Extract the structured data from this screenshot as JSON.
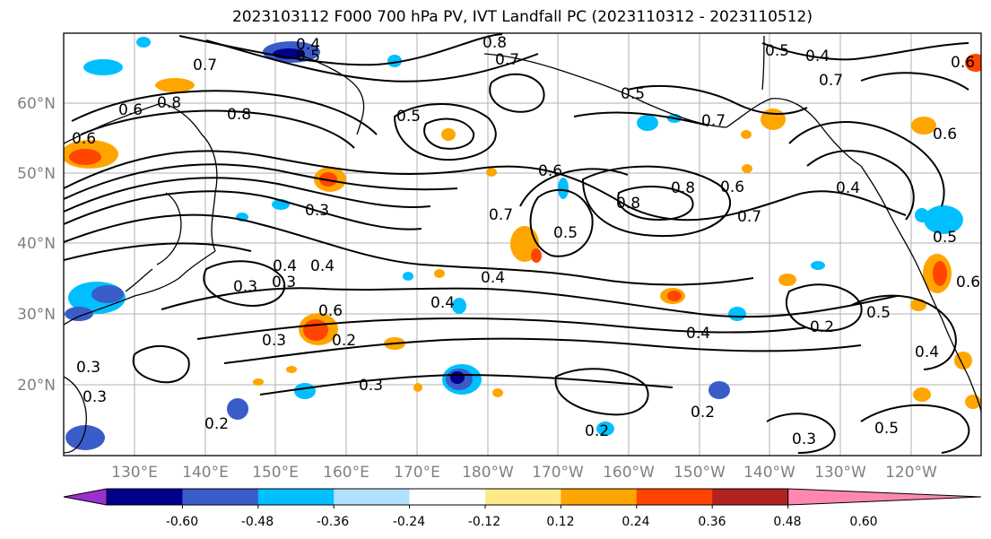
{
  "title": "2023103112 F000 700 hPa PV, IVT Landfall PC (2023110312 - 2023110512)",
  "lat_labels": [
    "60°N",
    "50°N",
    "40°N",
    "30°N",
    "20°N"
  ],
  "lon_labels": [
    "130°E",
    "140°E",
    "150°E",
    "160°E",
    "170°E",
    "180°W",
    "170°W",
    "160°W",
    "150°W",
    "140°W",
    "130°W",
    "120°W"
  ],
  "colorbar": {
    "colors": [
      "#9932cc",
      "#00008b",
      "#3a5cc8",
      "#00bfff",
      "#b0e2ff",
      "#ffffff",
      "#ffea8a",
      "#ffa500",
      "#ff4500",
      "#b22222",
      "#ff88b0"
    ],
    "tick_labels": [
      "-0.60",
      "-0.48",
      "-0.36",
      "-0.24",
      "-0.12",
      "0.12",
      "0.24",
      "0.36",
      "0.48",
      "0.60"
    ]
  },
  "contour_labels": [
    "0.4",
    "0.5",
    "0.8",
    "0.7",
    "0.5",
    "0.4",
    "0.7",
    "0.6",
    "0.8",
    "0.8",
    "0.6",
    "0.7",
    "0.5",
    "0.7",
    "0.8",
    "0.8",
    "0.6",
    "0.7",
    "0.4",
    "0.6",
    "0.3",
    "0.7",
    "0.5",
    "0.4",
    "0.5",
    "0.3",
    "0.4",
    "0.3",
    "0.4",
    "0.4",
    "0.6",
    "0.3",
    "0.2",
    "0.3",
    "0.4",
    "0.2",
    "0.5",
    "0.2",
    "0.2",
    "0.3",
    "0.5",
    "0.2",
    "0.3",
    "0.3",
    "0.4",
    "0.6",
    "0.6",
    "0.5",
    "0.6"
  ]
}
